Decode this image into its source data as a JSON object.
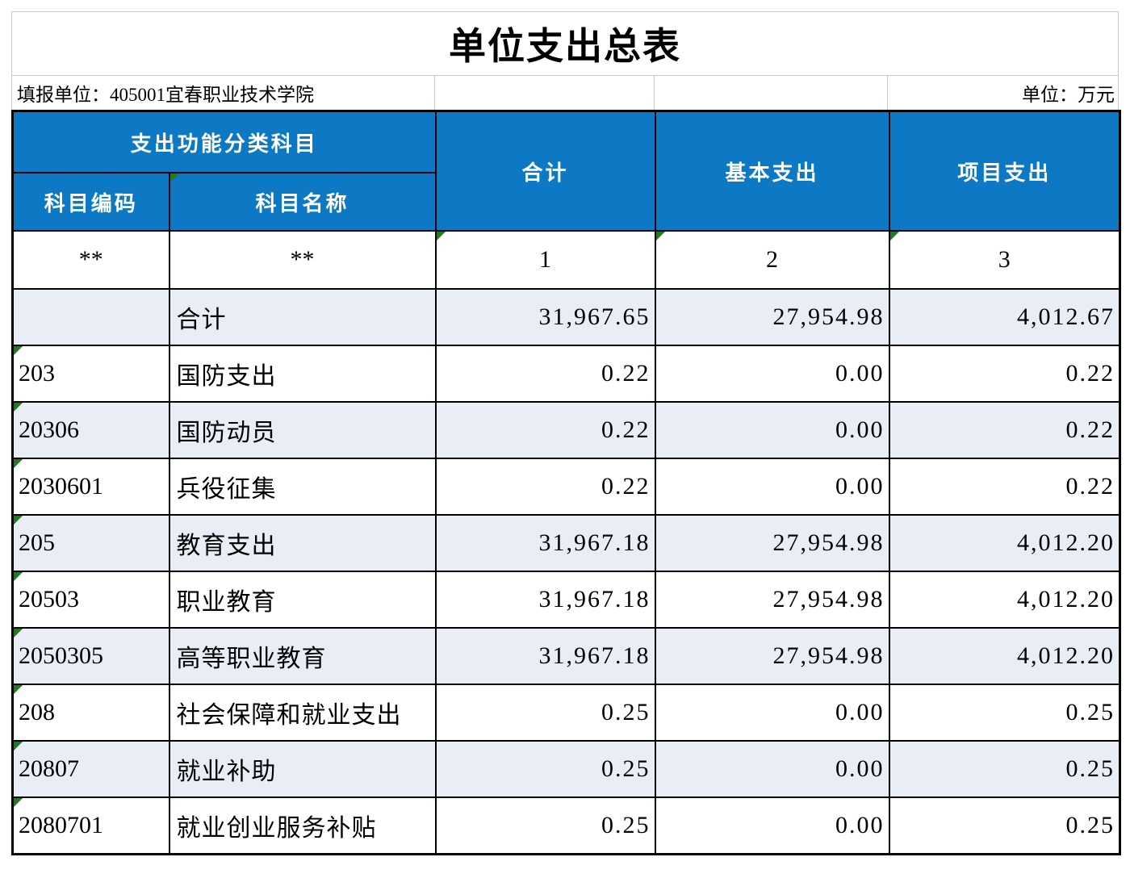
{
  "title": "单位支出总表",
  "subtitle": {
    "reporting_unit": "填报单位：405001宜春职业技术学院",
    "unit": "单位：万元"
  },
  "colors": {
    "header_blue": "#0d79c4",
    "row_alt_lavender": "#e9edf6",
    "grid_black": "#000000",
    "grid_gray": "#c8c8c8",
    "marker_green": "#1e7e1e"
  },
  "table": {
    "group_header": "支出功能分类科目",
    "columns": {
      "code": "科目编码",
      "name": "科目名称",
      "total": "合计",
      "basic": "基本支出",
      "project": "项目支出"
    },
    "subheader": {
      "code": "**",
      "name": "**",
      "total": "1",
      "basic": "2",
      "project": "3"
    },
    "rows": [
      {
        "code": "",
        "name": "合计",
        "total": "31,967.65",
        "basic": "27,954.98",
        "project": "4,012.67",
        "marker": false
      },
      {
        "code": "203",
        "name": "国防支出",
        "total": "0.22",
        "basic": "0.00",
        "project": "0.22",
        "marker": true
      },
      {
        "code": "20306",
        "name": "国防动员",
        "total": "0.22",
        "basic": "0.00",
        "project": "0.22",
        "marker": true
      },
      {
        "code": "2030601",
        "name": "兵役征集",
        "total": "0.22",
        "basic": "0.00",
        "project": "0.22",
        "marker": true
      },
      {
        "code": "205",
        "name": "教育支出",
        "total": "31,967.18",
        "basic": "27,954.98",
        "project": "4,012.20",
        "marker": true
      },
      {
        "code": "20503",
        "name": "职业教育",
        "total": "31,967.18",
        "basic": "27,954.98",
        "project": "4,012.20",
        "marker": true
      },
      {
        "code": "2050305",
        "name": "高等职业教育",
        "total": "31,967.18",
        "basic": "27,954.98",
        "project": "4,012.20",
        "marker": true
      },
      {
        "code": "208",
        "name": "社会保障和就业支出",
        "total": "0.25",
        "basic": "0.00",
        "project": "0.25",
        "marker": true
      },
      {
        "code": "20807",
        "name": "就业补助",
        "total": "0.25",
        "basic": "0.00",
        "project": "0.25",
        "marker": true
      },
      {
        "code": "2080701",
        "name": "就业创业服务补贴",
        "total": "0.25",
        "basic": "0.00",
        "project": "0.25",
        "marker": true
      }
    ]
  }
}
